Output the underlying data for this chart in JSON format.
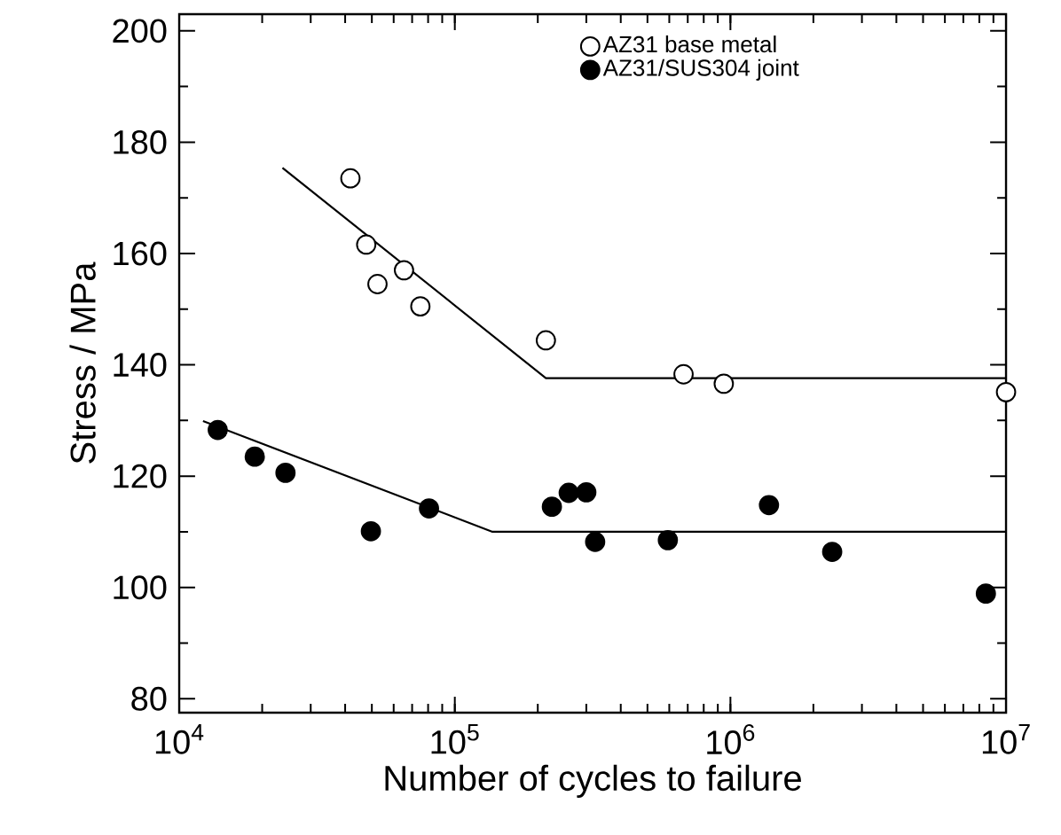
{
  "chart_data": {
    "type": "scatter",
    "xlabel": "Number of cycles to failure",
    "ylabel": "Stress / MPa",
    "log": "x",
    "xlim": [
      10000,
      10000000
    ],
    "ylim": [
      77.5,
      203
    ],
    "xticks": [
      {
        "value": 10000,
        "label": "10$^{4}$"
      },
      {
        "value": 100000,
        "label": "10$^{5}$"
      },
      {
        "value": 1000000,
        "label": "10$^{6}$"
      },
      {
        "value": 10000000,
        "label": "10$^{7}$"
      }
    ],
    "yticks": [
      80,
      100,
      120,
      140,
      160,
      180,
      200
    ],
    "grid": false,
    "legend": "top",
    "marker": "circle",
    "series": [
      {
        "name": "AZ31 base metal",
        "color": "#ffffff",
        "x": [
          41800,
          47700,
          52400,
          65400,
          75000,
          214000,
          676000,
          946000,
          10000000
        ],
        "values": [
          173.5,
          161.6,
          154.5,
          157.0,
          150.5,
          144.4,
          138.3,
          136.6,
          135.1
        ]
      },
      {
        "name": "AZ31/SUS304 joint",
        "color": "#000000",
        "x": [
          13800,
          18800,
          24300,
          49600,
          80600,
          225000,
          259000,
          300000,
          323000,
          593000,
          1380000,
          2340000,
          8450000
        ],
        "values": [
          128.3,
          123.5,
          120.6,
          110.1,
          114.2,
          114.5,
          117.0,
          117.1,
          108.2,
          108.5,
          114.8,
          106.4,
          98.9
        ]
      },
      {
        "type": "line",
        "color": "#000000",
        "marker": "none",
        "line_style": "solid",
        "x": [
          23700,
          214000,
          10000000
        ],
        "values": [
          175.4,
          137.6,
          137.6
        ]
      },
      {
        "type": "line",
        "color": "#000000",
        "marker": "none",
        "line_style": "solid",
        "x": [
          12200,
          137000,
          10000000
        ],
        "values": [
          129.9,
          110.0,
          110.0
        ]
      }
    ]
  }
}
